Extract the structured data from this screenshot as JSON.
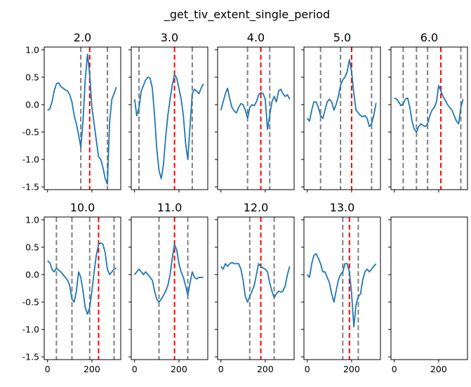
{
  "suptitle": "_get_tiv_extent_single_period",
  "chart_data": {
    "type": "line",
    "title": "_get_tiv_extent_single_period",
    "ylim": [
      -1.55,
      1.05
    ],
    "xlim": [
      -15,
      330
    ],
    "yticks": [
      1.0,
      0.5,
      0.0,
      -0.5,
      -1.0,
      -1.5
    ],
    "xticks": [
      0,
      200
    ],
    "grid": false,
    "colors": {
      "line": "#1f77b4",
      "gray_vline": "#808080",
      "red_vline": "#ff0000"
    },
    "panels": [
      {
        "title": "2.0",
        "x": [
          0,
          10,
          20,
          30,
          40,
          50,
          60,
          70,
          80,
          90,
          100,
          110,
          120,
          130,
          140,
          150,
          160,
          170,
          180,
          190,
          200,
          210,
          220,
          230,
          240,
          250,
          260,
          270,
          280,
          290,
          300,
          310
        ],
        "y": [
          -0.1,
          -0.08,
          0.05,
          0.25,
          0.38,
          0.4,
          0.33,
          0.3,
          0.27,
          0.25,
          0.18,
          0.05,
          -0.2,
          -0.35,
          -0.55,
          -0.78,
          -0.3,
          0.45,
          0.92,
          0.55,
          -0.05,
          -0.35,
          -0.65,
          -0.95,
          -1.0,
          -1.15,
          -1.35,
          -1.45,
          -0.3,
          0.1,
          0.2,
          0.32
        ],
        "gray_lines": [
          150,
          270
        ],
        "red_line": 190
      },
      {
        "title": "3.0",
        "x": [
          0,
          10,
          20,
          30,
          40,
          50,
          60,
          70,
          80,
          90,
          100,
          110,
          120,
          130,
          140,
          150,
          160,
          170,
          180,
          190,
          200,
          210,
          220,
          230,
          240,
          250,
          260,
          270,
          280,
          290,
          300,
          310
        ],
        "y": [
          0.1,
          -0.2,
          -0.05,
          0.25,
          0.35,
          0.45,
          0.5,
          0.48,
          0.3,
          -0.2,
          -0.8,
          -1.2,
          -1.35,
          -1.1,
          -0.6,
          -0.2,
          0.1,
          0.35,
          0.55,
          0.48,
          0.3,
          0.1,
          -0.2,
          -0.7,
          -1.0,
          -0.4,
          0.2,
          0.28,
          0.25,
          0.2,
          0.3,
          0.38
        ],
        "gray_lines": [
          20,
          260
        ],
        "red_line": 180
      },
      {
        "title": "4.0",
        "x": [
          0,
          10,
          20,
          30,
          40,
          50,
          60,
          70,
          80,
          90,
          100,
          110,
          120,
          130,
          140,
          150,
          160,
          170,
          180,
          190,
          200,
          210,
          220,
          230,
          240,
          250,
          260,
          270,
          280,
          290,
          300,
          310
        ],
        "y": [
          -0.1,
          0.05,
          0.2,
          0.3,
          0.1,
          -0.05,
          -0.12,
          -0.15,
          -0.05,
          0.02,
          0.0,
          -0.1,
          -0.25,
          -0.05,
          0.0,
          -0.02,
          0.05,
          0.18,
          0.22,
          0.2,
          0.1,
          -0.45,
          -0.2,
          0.05,
          0.15,
          0.05,
          0.25,
          0.28,
          0.2,
          0.15,
          0.18,
          0.1
        ],
        "gray_lines": [
          120,
          220
        ],
        "red_line": 180
      },
      {
        "title": "5.0",
        "x": [
          0,
          10,
          20,
          30,
          40,
          50,
          60,
          70,
          80,
          90,
          100,
          110,
          120,
          130,
          140,
          150,
          160,
          170,
          180,
          190,
          200,
          210,
          220,
          230,
          240,
          250,
          260,
          270,
          280,
          290,
          300,
          310
        ],
        "y": [
          -0.25,
          -0.3,
          -0.1,
          0.05,
          0.05,
          -0.05,
          -0.2,
          -0.25,
          -0.1,
          0.05,
          0.1,
          0.05,
          -0.1,
          0.0,
          0.15,
          0.35,
          0.45,
          0.5,
          0.6,
          0.82,
          0.6,
          0.2,
          -0.1,
          -0.15,
          -0.2,
          -0.22,
          -0.2,
          -0.25,
          -0.4,
          -0.35,
          -0.2,
          0.03
        ],
        "gray_lines": [
          60,
          150,
          290
        ],
        "red_line": 200
      },
      {
        "title": "6.0",
        "x": [
          0,
          10,
          20,
          30,
          40,
          50,
          60,
          70,
          80,
          90,
          100,
          110,
          120,
          130,
          140,
          150,
          160,
          170,
          180,
          190,
          200,
          210,
          220,
          230,
          240,
          250,
          260,
          270,
          280,
          290,
          300,
          310
        ],
        "y": [
          0.12,
          0.1,
          0.05,
          -0.02,
          0.02,
          0.1,
          0.12,
          -0.05,
          -0.3,
          -0.45,
          -0.5,
          -0.4,
          -0.35,
          -0.38,
          -0.4,
          -0.35,
          -0.2,
          -0.1,
          -0.05,
          0.05,
          0.35,
          0.25,
          0.15,
          0.08,
          0.0,
          -0.05,
          -0.1,
          -0.2,
          -0.3,
          -0.35,
          -0.05,
          0.1
        ],
        "gray_lines": [
          40,
          100,
          150,
          300
        ],
        "red_line": 210
      },
      {
        "title": "10.0",
        "x": [
          0,
          10,
          20,
          30,
          40,
          50,
          60,
          70,
          80,
          90,
          100,
          110,
          120,
          130,
          140,
          150,
          160,
          170,
          180,
          190,
          200,
          210,
          220,
          230,
          240,
          250,
          260,
          270,
          280,
          290,
          300,
          310
        ],
        "y": [
          0.25,
          0.22,
          0.1,
          0.05,
          0.12,
          0.08,
          0.05,
          0.0,
          -0.05,
          -0.1,
          -0.2,
          -0.45,
          -0.5,
          -0.3,
          0.05,
          -0.05,
          -0.3,
          -0.6,
          -0.72,
          -0.6,
          -0.3,
          0.05,
          0.35,
          0.55,
          0.58,
          0.55,
          0.4,
          0.1,
          0.0,
          0.05,
          0.1,
          0.12
        ],
        "gray_lines": [
          40,
          110,
          190,
          300
        ],
        "red_line": 230
      },
      {
        "title": "11.0",
        "x": [
          0,
          10,
          20,
          30,
          40,
          50,
          60,
          70,
          80,
          90,
          100,
          110,
          120,
          130,
          140,
          150,
          160,
          170,
          180,
          190,
          200,
          210,
          220,
          230,
          240,
          250,
          260,
          270,
          280,
          290,
          300,
          310
        ],
        "y": [
          0.0,
          0.05,
          0.1,
          0.05,
          0.0,
          0.05,
          0.0,
          -0.05,
          -0.1,
          -0.3,
          -0.45,
          -0.5,
          -0.45,
          -0.38,
          -0.3,
          -0.2,
          0.0,
          0.3,
          0.55,
          0.45,
          0.2,
          0.05,
          -0.05,
          -0.2,
          -0.38,
          -0.15,
          0.05,
          -0.05,
          -0.08,
          -0.05,
          -0.05,
          -0.05
        ],
        "gray_lines": [
          110,
          240
        ],
        "red_line": 180
      },
      {
        "title": "12.0",
        "x": [
          0,
          10,
          20,
          30,
          40,
          50,
          60,
          70,
          80,
          90,
          100,
          110,
          120,
          130,
          140,
          150,
          160,
          170,
          180,
          190,
          200,
          210,
          220,
          230,
          240,
          250,
          260,
          270,
          280,
          290,
          300,
          310
        ],
        "y": [
          0.15,
          0.1,
          0.2,
          0.15,
          0.2,
          0.22,
          0.2,
          0.2,
          0.2,
          0.1,
          -0.1,
          -0.4,
          -0.5,
          -0.4,
          -0.3,
          -0.2,
          0.0,
          0.2,
          0.15,
          0.12,
          0.1,
          0.05,
          -0.15,
          -0.3,
          -0.42,
          -0.35,
          -0.3,
          -0.32,
          -0.3,
          -0.2,
          0.0,
          0.15
        ],
        "gray_lines": [
          130,
          240
        ],
        "red_line": 180
      },
      {
        "title": "13.0",
        "x": [
          0,
          10,
          20,
          30,
          40,
          50,
          60,
          70,
          80,
          90,
          100,
          110,
          120,
          130,
          140,
          150,
          160,
          170,
          180,
          190,
          200,
          210,
          220,
          230,
          240,
          250,
          260,
          270,
          280,
          290,
          300,
          310
        ],
        "y": [
          0.0,
          -0.05,
          0.2,
          0.35,
          0.38,
          0.3,
          0.2,
          0.05,
          0.05,
          -0.05,
          -0.15,
          -0.35,
          -0.5,
          -0.3,
          -0.1,
          0.0,
          0.05,
          0.2,
          0.2,
          0.05,
          -0.35,
          -0.95,
          -0.55,
          -0.4,
          -0.35,
          -0.1,
          0.05,
          0.1,
          0.05,
          0.1,
          0.15,
          0.2
        ],
        "gray_lines": [
          160,
          230
        ],
        "red_line": 190
      },
      {
        "title": "",
        "x": [],
        "y": [],
        "gray_lines": [],
        "red_line": null
      }
    ]
  }
}
